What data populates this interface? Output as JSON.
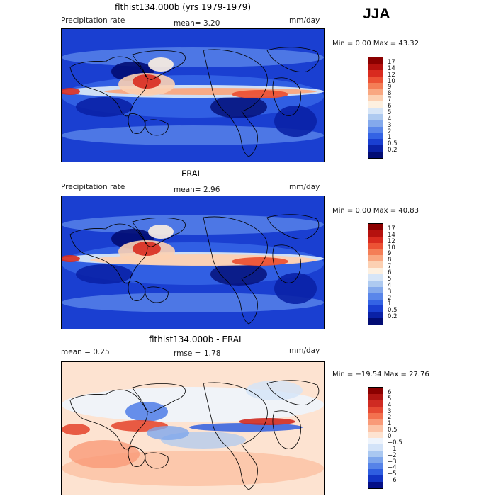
{
  "season": "JJA",
  "panels": [
    {
      "title": "flthist134.000b (yrs 1979-1979)",
      "left_label": "Precipitation rate",
      "mean_label": "mean=",
      "mean_value": "3.20",
      "units": "mm/day",
      "minmax": "Min =    0.00 Max =   43.32",
      "levels": [
        "17",
        "14",
        "12",
        "10",
        "9",
        "8",
        "7",
        "6",
        "5",
        "4",
        "3",
        "2",
        "1",
        "0.5",
        "0.2"
      ],
      "colors": [
        "#8b0000",
        "#b5110e",
        "#d92b1f",
        "#ec5235",
        "#f47e57",
        "#f9a781",
        "#fcd0b2",
        "#fdf0e0",
        "#d6e5f7",
        "#aecaf0",
        "#84a9ec",
        "#5a86ea",
        "#3463e4",
        "#1a3fd1",
        "#0a21a6",
        "#020c73"
      ]
    },
    {
      "title": "ERAI",
      "left_label": "Precipitation rate",
      "mean_label": "mean=",
      "mean_value": "2.96",
      "units": "mm/day",
      "minmax": "Min =    0.00 Max =   40.83",
      "levels": [
        "17",
        "14",
        "12",
        "10",
        "9",
        "8",
        "7",
        "6",
        "5",
        "4",
        "3",
        "2",
        "1",
        "0.5",
        "0.2"
      ],
      "colors": [
        "#8b0000",
        "#b5110e",
        "#d92b1f",
        "#ec5235",
        "#f47e57",
        "#f9a781",
        "#fcd0b2",
        "#fdf0e0",
        "#d6e5f7",
        "#aecaf0",
        "#84a9ec",
        "#5a86ea",
        "#3463e4",
        "#1a3fd1",
        "#0a21a6",
        "#020c73"
      ]
    },
    {
      "title": "flthist134.000b - ERAI",
      "left_label": "mean =    0.25",
      "mean_label": "rmse =",
      "mean_value": "1.78",
      "units": "mm/day",
      "minmax": "Min = −19.54 Max =   27.76",
      "levels": [
        "6",
        "5",
        "4",
        "3",
        "2",
        "1",
        "0.5",
        "0",
        "−0.5",
        "−1",
        "−2",
        "−3",
        "−4",
        "−5",
        "−6"
      ],
      "colors": [
        "#8b0000",
        "#b01512",
        "#cf2b22",
        "#e64a33",
        "#f3714f",
        "#f99a78",
        "#fcc3a6",
        "#fde3d1",
        "#eef4fc",
        "#d3e3f8",
        "#aac8f1",
        "#7ea6ec",
        "#5683e8",
        "#2f5ee0",
        "#1234c4",
        "#040f86"
      ]
    }
  ]
}
